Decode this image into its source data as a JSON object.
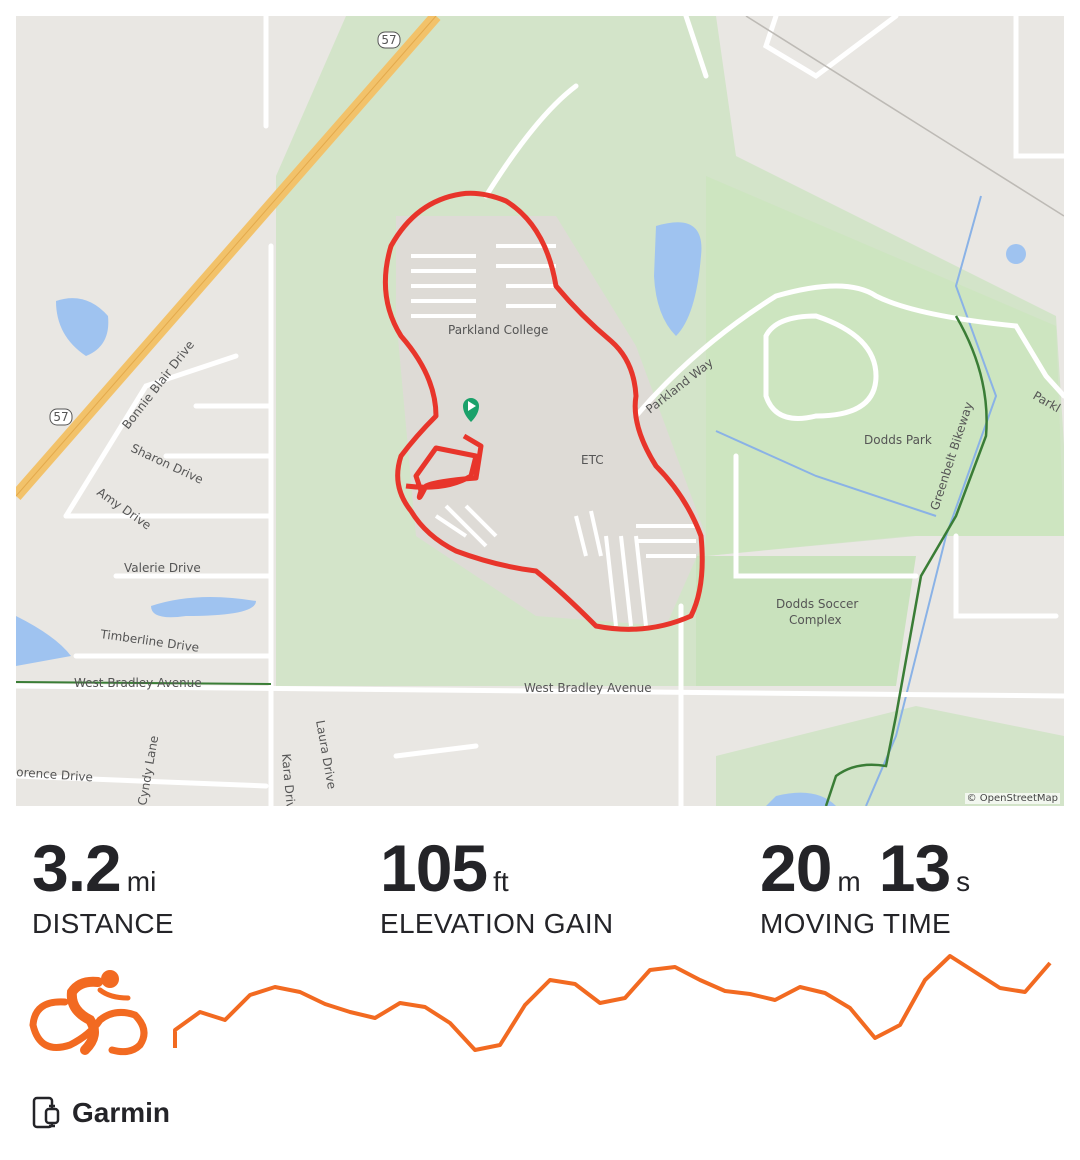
{
  "map": {
    "labels": {
      "college": "Parkland College",
      "etc": "ETC",
      "parkland_way": "Parkland Way",
      "dodds_park": "Dodds Park",
      "soccer1": "Dodds Soccer",
      "soccer2": "Complex",
      "bonnie": "Bonnie Blair Drive",
      "sharon": "Sharon Drive",
      "amy": "Amy Drive",
      "valerie": "Valerie Drive",
      "timberline": "Timberline Drive",
      "bradley_w": "West Bradley Avenue",
      "bradley_e": "West Bradley Avenue",
      "laura": "Laura Drive",
      "kara": "Kara Drive",
      "cyndy": "Cyndy Lane",
      "florence": "orence Drive",
      "greenbelt": "Greenbelt Bikeway",
      "parkl": "Parkl",
      "i57a": "57",
      "i57b": "57"
    },
    "attribution": "© OpenStreetMap",
    "route_color": "#e8352b"
  },
  "stats": [
    {
      "value": "3.2",
      "unit": "mi",
      "label": "DISTANCE"
    },
    {
      "value": "105",
      "unit": "ft",
      "label": "ELEVATION GAIN"
    },
    {
      "value_min": "20",
      "unit_min": "m",
      "value_sec": "13",
      "unit_sec": "s",
      "label": "MOVING TIME"
    }
  ],
  "activity_icon": "cycling-icon",
  "accent_color": "#f26a21",
  "chart_data": {
    "type": "line",
    "title": "",
    "values": [
      30,
      48,
      40,
      65,
      73,
      68,
      56,
      48,
      42,
      57,
      53,
      37,
      10,
      15,
      55,
      80,
      76,
      57,
      62,
      90,
      93,
      80,
      69,
      66,
      60,
      73,
      67,
      52,
      22,
      35,
      80,
      104,
      88,
      72,
      68,
      97
    ]
  },
  "device": {
    "icon": "phone-watch-icon",
    "name": "Garmin"
  }
}
